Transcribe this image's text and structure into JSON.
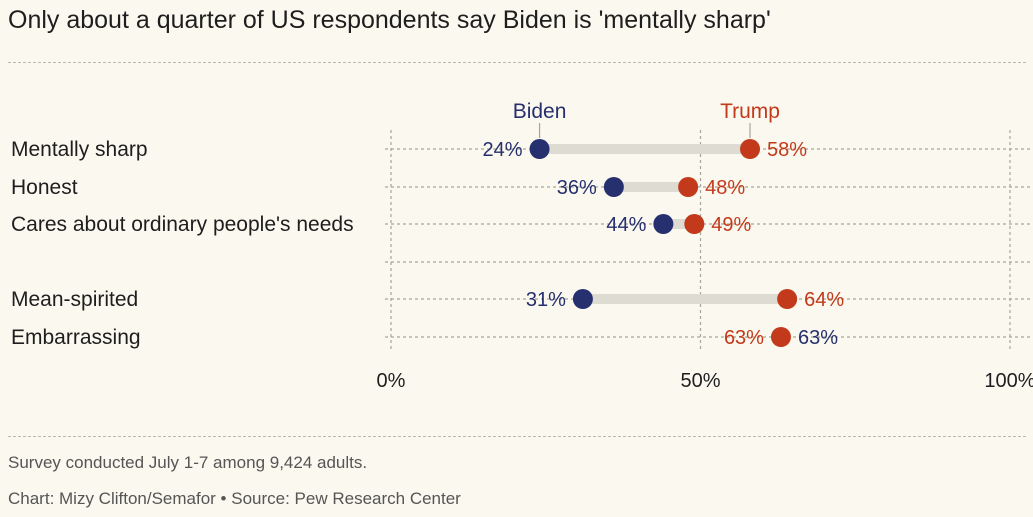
{
  "title": "Only about a quarter of US respondents say Biden is 'mentally sharp'",
  "footer": {
    "note": "Survey conducted July 1-7 among 9,424 adults.",
    "credit": "Chart: Mizy Clifton/Semafor • Source: Pew Research Center"
  },
  "colors": {
    "biden": "#26306e",
    "trump": "#c23a1b",
    "connector": "#dedbd3",
    "grid": "#a8a49b",
    "label": "#1e1e1e"
  },
  "chart_data": {
    "type": "dot-plot",
    "series": [
      {
        "name": "Biden",
        "values": [
          24,
          36,
          44,
          31,
          63
        ]
      },
      {
        "name": "Trump",
        "values": [
          58,
          48,
          49,
          64,
          63
        ]
      }
    ],
    "categories": [
      "Mentally sharp",
      "Honest",
      "Cares about ordinary people's needs",
      "Mean-spirited",
      "Embarrassing"
    ],
    "value_labels": {
      "Biden": [
        "24%",
        "36%",
        "44%",
        "31%",
        "63%"
      ],
      "Trump": [
        "58%",
        "48%",
        "49%",
        "64%",
        "63%"
      ]
    },
    "x_ticks": [
      {
        "value": 0,
        "label": "0%"
      },
      {
        "value": 50,
        "label": "50%"
      },
      {
        "value": 100,
        "label": "100%"
      }
    ],
    "xlim": [
      0,
      100
    ],
    "grid": true,
    "legend": "direct labels above first row"
  }
}
